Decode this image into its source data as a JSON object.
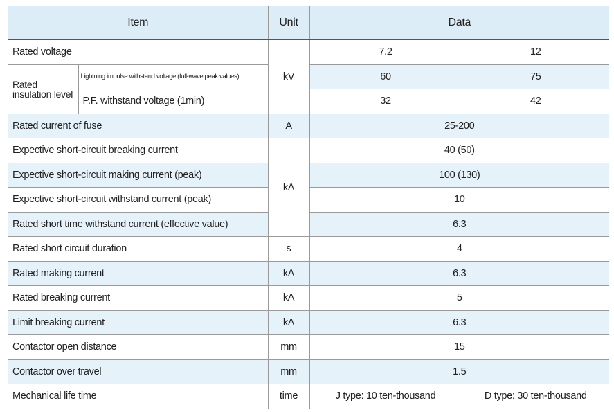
{
  "header": {
    "item": "Item",
    "unit": "Unit",
    "data": "Data"
  },
  "rated_voltage": {
    "label": "Rated voltage",
    "unit": "kV",
    "values": [
      "7.2",
      "12"
    ]
  },
  "insulation": {
    "label": "Rated insulation level",
    "rows": [
      {
        "label": "Lightning impulse withstand voltage (full-wave peak values)",
        "values": [
          "60",
          "75"
        ]
      },
      {
        "label": "P.F. withstand voltage (1min)",
        "values": [
          "32",
          "42"
        ]
      }
    ]
  },
  "rows": [
    {
      "label": "Rated current of fuse",
      "unit": "A",
      "value": "25-200"
    },
    {
      "label": "Expective short-circuit breaking current",
      "unit": "kA",
      "value": "40 (50)"
    },
    {
      "label": "Expective short-circuit making current (peak)",
      "value": "100 (130)"
    },
    {
      "label": "Expective short-circuit withstand current (peak)",
      "value": "10"
    },
    {
      "label": "Rated short time withstand current (effective value)",
      "value": "6.3"
    },
    {
      "label": "Rated short circuit duration",
      "unit": "s",
      "value": "4"
    },
    {
      "label": "Rated making current",
      "unit": "kA",
      "value": "6.3"
    },
    {
      "label": "Rated breaking current",
      "unit": "kA",
      "value": "5"
    },
    {
      "label": "Limit breaking current",
      "unit": "kA",
      "value": "6.3"
    },
    {
      "label": "Contactor open distance",
      "unit": "mm",
      "value": "15"
    },
    {
      "label": "Contactor over travel",
      "unit": "mm",
      "value": "1.5"
    }
  ],
  "mechanical": {
    "label": "Mechanical life time",
    "unit": "time",
    "values": [
      "J type: 10 ten-thousand",
      "D type: 30 ten-thousand"
    ]
  }
}
